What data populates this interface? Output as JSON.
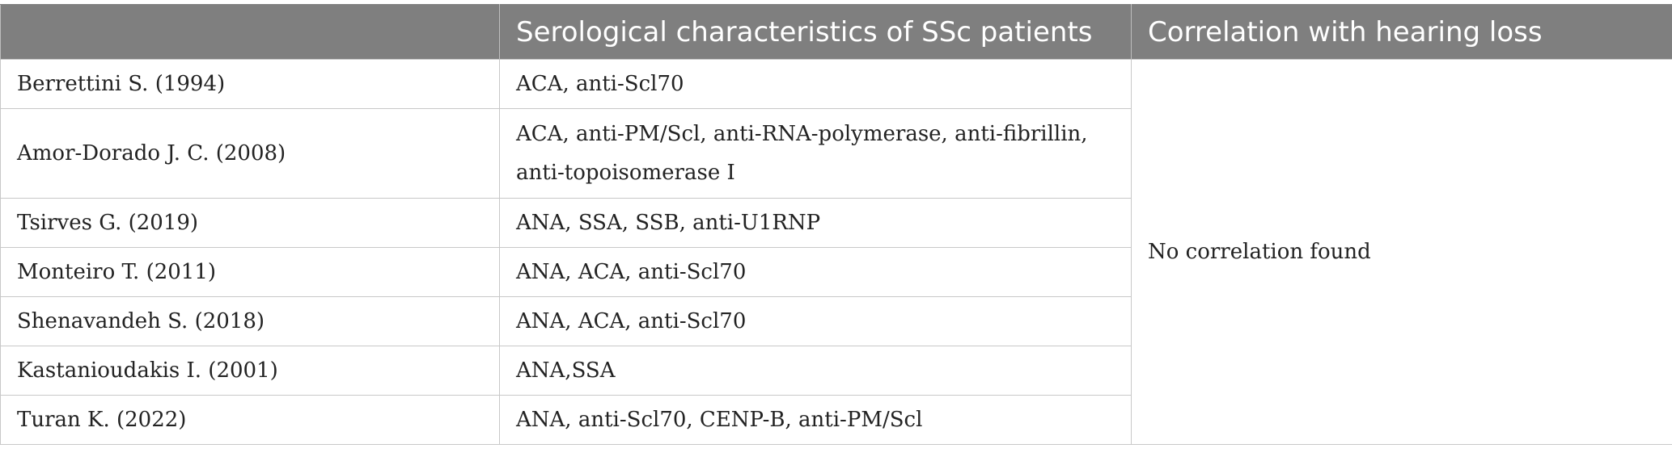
{
  "table": {
    "headers": [
      "",
      "Serological characteristics of SSc patients",
      "Correlation with hearing loss"
    ],
    "rows": [
      {
        "study": "Berrettini S. (1994)",
        "serology": "ACA, anti-Scl70"
      },
      {
        "study": "Amor-Dorado J. C. (2008)",
        "serology": "ACA, anti-PM/Scl, anti-RNA-polymerase, anti-fibrillin, anti-topoisomerase I"
      },
      {
        "study": "Tsirves G. (2019)",
        "serology": "ANA, SSA, SSB, anti-U1RNP"
      },
      {
        "study": "Monteiro T. (2011)",
        "serology": "ANA, ACA, anti-Scl70"
      },
      {
        "study": "Shenavandeh S. (2018)",
        "serology": "ANA, ACA, anti-Scl70"
      },
      {
        "study": "Kastanioudakis I. (2001)",
        "serology": "ANA,SSA"
      },
      {
        "study": "Turan K. (2022)",
        "serology": "ANA, anti-Scl70, CENP-B, anti-PM/Scl"
      }
    ],
    "correlation": "No correlation found"
  },
  "colors": {
    "header_bg": "#7f7f7f",
    "header_text": "#ffffff",
    "border": "#c8c8c8"
  }
}
